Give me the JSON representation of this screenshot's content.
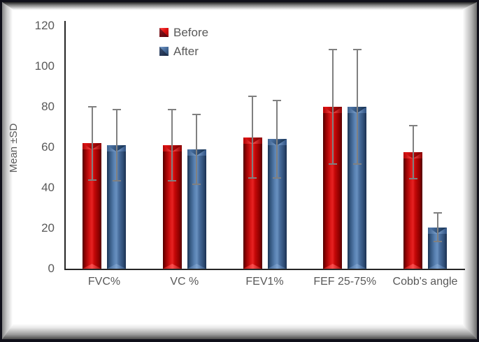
{
  "figure": {
    "background": "#ffffff",
    "frame_style": "3d-bevel-picture-frame",
    "frame_border_color": "#10101a"
  },
  "colors": {
    "series_before": "#C00000",
    "series_after": "#3F6499",
    "error_bar": "#808080",
    "axis_line": "#262626",
    "text": "#595959"
  },
  "chart_data": {
    "type": "bar",
    "title": "",
    "xlabel": "",
    "ylabel": "Mean ±SD",
    "categories": [
      "FVC%",
      "VC %",
      "FEV1%",
      "FEF 25-75%",
      "Cobb's angle"
    ],
    "series": [
      {
        "name": "Before",
        "color": "#C00000",
        "values": [
          62,
          61,
          65,
          80,
          57.5
        ],
        "sd": [
          18.5,
          18,
          20.5,
          28.5,
          13.5
        ]
      },
      {
        "name": "After",
        "color": "#3F6499",
        "values": [
          61,
          59,
          64,
          80,
          20.5
        ],
        "sd": [
          18,
          17.5,
          19.5,
          28.5,
          7.5
        ]
      }
    ],
    "error_bars": "plus-minus-sd",
    "ylim": [
      0,
      120
    ],
    "yticks": [
      0,
      20,
      40,
      60,
      80,
      100,
      120
    ],
    "grid": false,
    "legend_position": "top-center",
    "legend_entries": [
      "Before",
      "After"
    ]
  }
}
